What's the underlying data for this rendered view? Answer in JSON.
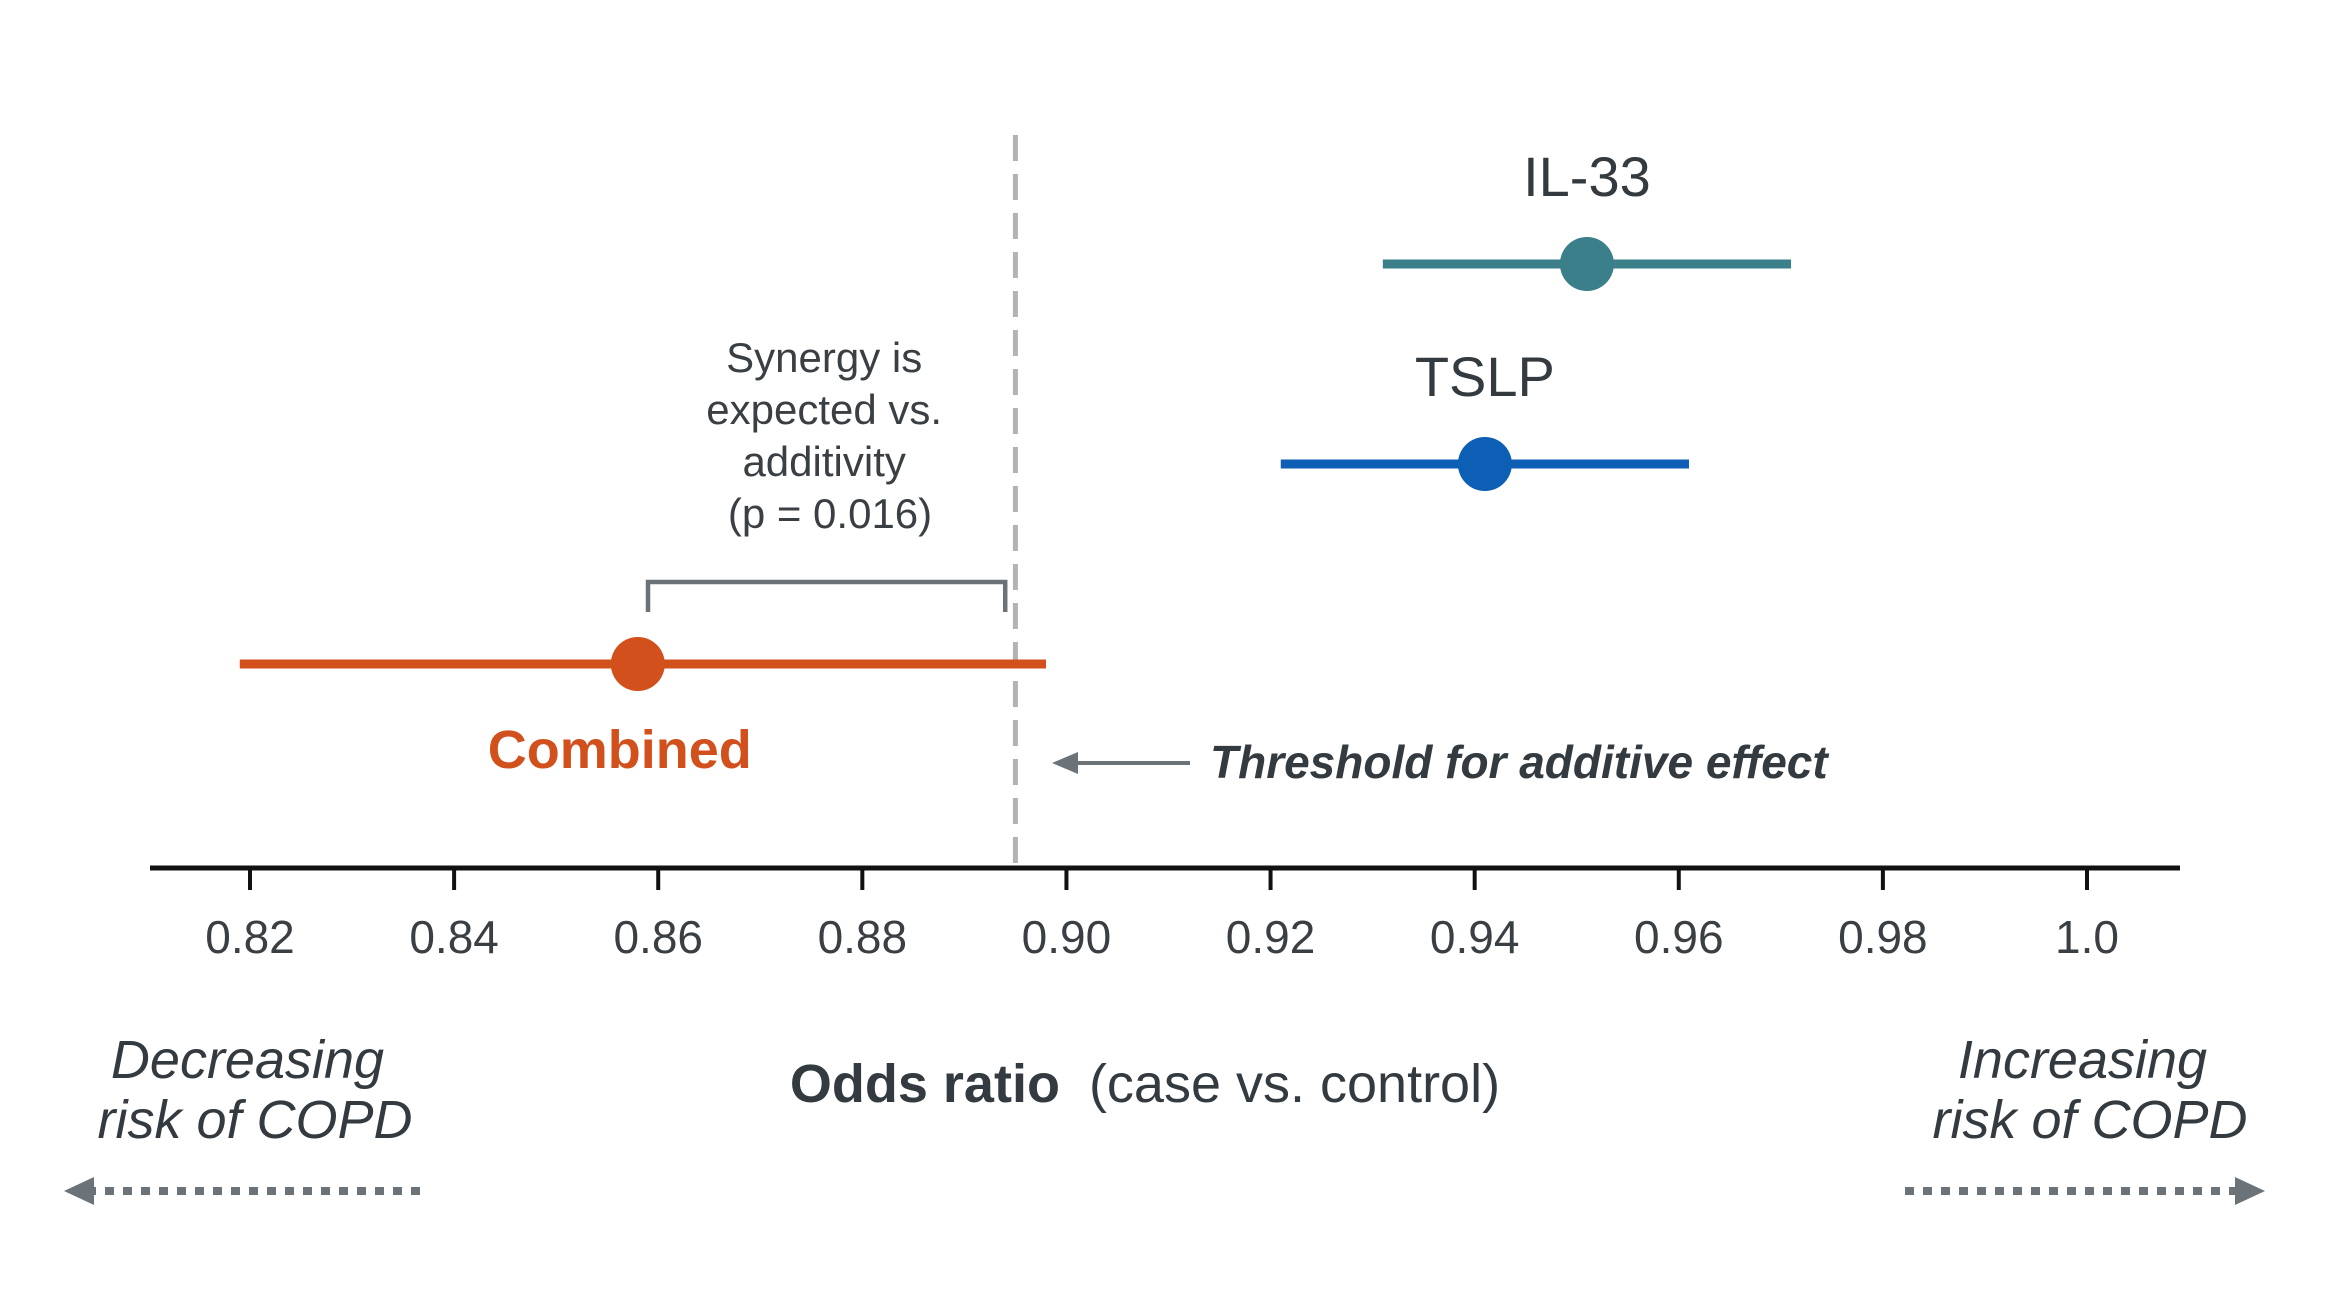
{
  "colors": {
    "il33": "#3b7f8a",
    "tslp": "#0d5fb5",
    "combined": "#d1501c",
    "text": "#333b40",
    "annotation": "#6b7378",
    "threshold_line": "#b3b3b3",
    "axis": "#111111"
  },
  "chart_data": {
    "type": "forest",
    "title": "",
    "xlabel": {
      "bold": "Odds ratio",
      "normal": "(case vs. control)"
    },
    "ylabel": "",
    "xlim": [
      0.81,
      1.01
    ],
    "x_ticks": [
      0.82,
      0.84,
      0.86,
      0.88,
      0.9,
      0.92,
      0.94,
      0.96,
      0.98,
      1.0
    ],
    "x_tick_labels": [
      "0.82",
      "0.84",
      "0.86",
      "0.88",
      "0.90",
      "0.92",
      "0.94",
      "0.96",
      "0.98",
      "1.0"
    ],
    "grid": false,
    "series": [
      {
        "name": "IL-33",
        "or": 0.951,
        "lower": 0.931,
        "upper": 0.971
      },
      {
        "name": "TSLP",
        "or": 0.941,
        "lower": 0.921,
        "upper": 0.961
      },
      {
        "name": "Combined",
        "or": 0.858,
        "lower": 0.819,
        "upper": 0.898
      }
    ],
    "threshold": {
      "value": 0.895,
      "label": "Threshold for additive effect"
    },
    "synergy_annotation": {
      "lines": [
        "Synergy is",
        "expected vs.",
        "additivity",
        "(p = 0.016)"
      ],
      "bracket_from": 0.859,
      "bracket_to": 0.894
    },
    "direction_labels": {
      "left": [
        "Decreasing",
        "risk of COPD"
      ],
      "right": [
        "Increasing",
        "risk of COPD"
      ]
    }
  }
}
